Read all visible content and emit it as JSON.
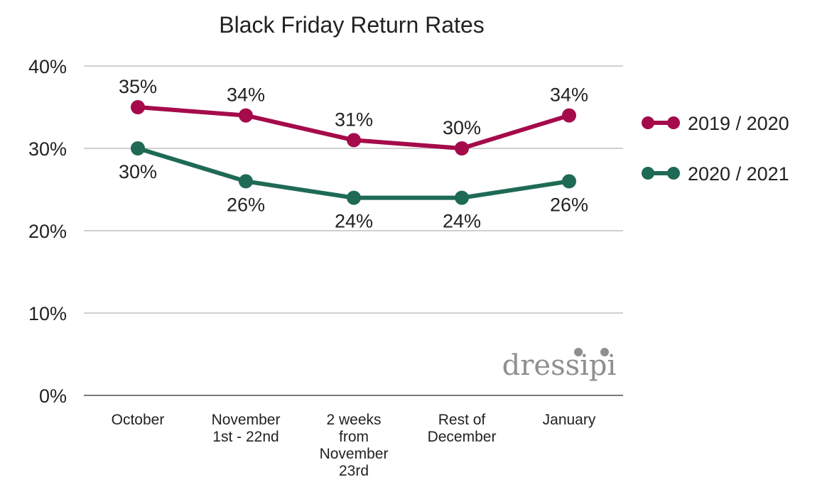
{
  "chart_data": {
    "type": "line",
    "title": "Black Friday Return Rates",
    "xlabel": "",
    "ylabel": "",
    "categories": [
      [
        "October"
      ],
      [
        "November",
        "1st - 22nd"
      ],
      [
        "2 weeks",
        "from",
        "November",
        "23rd"
      ],
      [
        "Rest of",
        "December"
      ],
      [
        "January"
      ]
    ],
    "ylim": [
      0,
      40
    ],
    "yticks": [
      0,
      10,
      20,
      30,
      40
    ],
    "ytick_labels": [
      "0%",
      "10%",
      "20%",
      "30%",
      "40%"
    ],
    "grid": true,
    "legend_position": "right",
    "series": [
      {
        "name": "2019 / 2020",
        "color": "#a50b4b",
        "values": [
          35,
          34,
          31,
          30,
          34
        ],
        "labels": [
          "35%",
          "34%",
          "31%",
          "30%",
          "34%"
        ],
        "label_position": "above"
      },
      {
        "name": "2020 / 2021",
        "color": "#1e6a55",
        "values": [
          30,
          26,
          24,
          24,
          26
        ],
        "labels": [
          "30%",
          "26%",
          "24%",
          "24%",
          "26%"
        ],
        "label_position": "below"
      }
    ],
    "watermark": "dressipi"
  }
}
